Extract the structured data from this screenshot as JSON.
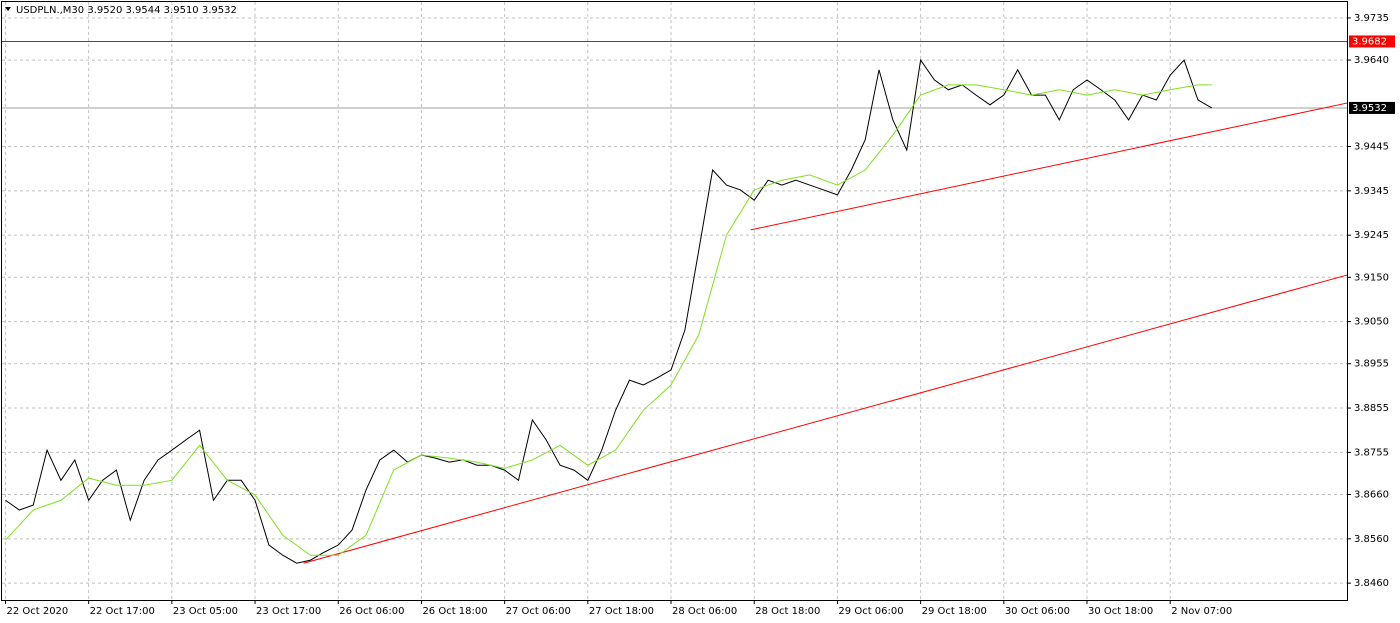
{
  "chart_data": {
    "type": "line",
    "header": "USDPLN.,M30  3.9520 3.9544 3.9510 3.9532",
    "xlim": [
      -1,
      387
    ],
    "ylim": [
      3.8422,
      3.9771
    ],
    "grid": true,
    "xticks": [
      {
        "value": 0,
        "label": "22 Oct 2020"
      },
      {
        "value": 24,
        "label": "22 Oct 17:00"
      },
      {
        "value": 48,
        "label": "23 Oct 05:00"
      },
      {
        "value": 72,
        "label": "23 Oct 17:00"
      },
      {
        "value": 96,
        "label": "26 Oct 06:00"
      },
      {
        "value": 120,
        "label": "26 Oct 18:00"
      },
      {
        "value": 144,
        "label": "27 Oct 06:00"
      },
      {
        "value": 168,
        "label": "27 Oct 18:00"
      },
      {
        "value": 192,
        "label": "28 Oct 06:00"
      },
      {
        "value": 216,
        "label": "28 Oct 18:00"
      },
      {
        "value": 240,
        "label": "29 Oct 06:00"
      },
      {
        "value": 264,
        "label": "29 Oct 18:00"
      },
      {
        "value": 288,
        "label": "30 Oct 06:00"
      },
      {
        "value": 312,
        "label": "30 Oct 18:00"
      },
      {
        "value": 336,
        "label": "2 Nov 07:00"
      }
    ],
    "yticks": [
      3.9735,
      {
        "value": 3.964,
        "label": "3.9640"
      },
      3.9445,
      3.9345,
      3.9245,
      {
        "value": 3.915,
        "label": "3.9150"
      },
      {
        "value": 3.905,
        "label": "3.9050"
      },
      3.8955,
      3.8855,
      3.8755,
      {
        "value": 3.866,
        "label": "3.8660"
      },
      {
        "value": 3.856,
        "label": "3.8560"
      },
      {
        "value": 3.846,
        "label": "3.8460"
      }
    ],
    "series": [
      {
        "color": "#000000",
        "x": [
          0,
          4,
          8,
          12,
          16,
          20,
          24,
          28,
          32,
          36,
          40,
          44,
          48,
          52,
          56,
          60,
          64,
          68,
          72,
          76,
          80,
          84,
          88,
          92,
          96,
          100,
          104,
          108,
          112,
          116,
          120,
          124,
          128,
          132,
          136,
          140,
          144,
          148,
          152,
          156,
          160,
          164,
          168,
          172,
          176,
          180,
          184,
          188,
          192,
          196,
          200,
          204,
          208,
          212,
          216,
          220,
          224,
          228,
          232,
          236,
          240,
          244,
          248,
          252,
          256,
          260,
          264,
          268,
          272,
          276,
          280,
          284,
          288,
          292,
          296,
          300,
          304,
          308,
          312,
          316,
          320,
          324,
          328,
          332,
          336,
          340,
          344,
          348
        ],
        "values": [
          3.8647,
          3.8625,
          3.8636,
          3.876,
          3.8692,
          3.8738,
          3.8647,
          3.8692,
          3.8715,
          3.8602,
          3.8692,
          3.8738,
          3.876,
          3.8783,
          3.8805,
          3.8647,
          3.8692,
          3.8692,
          3.8647,
          3.8546,
          3.8523,
          3.8505,
          3.8512,
          3.853,
          3.8546,
          3.858,
          3.867,
          3.8738,
          3.876,
          3.8733,
          3.8749,
          3.8742,
          3.8733,
          3.8738,
          3.8726,
          3.8726,
          3.8715,
          3.8692,
          3.8828,
          3.8783,
          3.8726,
          3.8715,
          3.8692,
          3.876,
          3.885,
          3.8918,
          3.8907,
          3.8923,
          3.8941,
          3.9031,
          3.9211,
          3.9392,
          3.9358,
          3.9347,
          3.9324,
          3.9369,
          3.9358,
          3.9369,
          3.9358,
          3.9347,
          3.9336,
          3.9392,
          3.946,
          3.9618,
          3.9505,
          3.9437,
          3.964,
          3.9595,
          3.9573,
          3.9584,
          3.9561,
          3.9539,
          3.9561,
          3.9618,
          3.9561,
          3.9561,
          3.9505,
          3.9573,
          3.9595,
          3.9573,
          3.955,
          3.9505,
          3.9561,
          3.955,
          3.9606,
          3.964,
          3.955,
          3.9532
        ]
      },
      {
        "color": "#7fe01f",
        "x": [
          0,
          8,
          16,
          24,
          32,
          40,
          48,
          56,
          64,
          72,
          80,
          88,
          96,
          104,
          112,
          120,
          128,
          136,
          144,
          152,
          160,
          168,
          176,
          184,
          192,
          200,
          208,
          216,
          224,
          232,
          240,
          248,
          256,
          264,
          272,
          280,
          288,
          296,
          304,
          312,
          320,
          328,
          336,
          344,
          348
        ],
        "values": [
          3.8557,
          3.8625,
          3.8647,
          3.8697,
          3.8681,
          3.8681,
          3.8692,
          3.8771,
          3.8692,
          3.8659,
          3.8568,
          3.8523,
          3.8523,
          3.8568,
          3.8715,
          3.8749,
          3.8742,
          3.8733,
          3.8719,
          3.8738,
          3.8771,
          3.8726,
          3.876,
          3.885,
          3.8907,
          3.902,
          3.9245,
          3.9347,
          3.9369,
          3.9381,
          3.9358,
          3.9392,
          3.9471,
          3.9561,
          3.9584,
          3.9584,
          3.9573,
          3.9561,
          3.9573,
          3.9561,
          3.9573,
          3.9561,
          3.9573,
          3.9584,
          3.9584
        ]
      }
    ],
    "trendlines": [
      {
        "color": "#ff0000",
        "x": [
          86,
          387
        ],
        "values": [
          3.8505,
          3.9155
        ]
      },
      {
        "color": "#ff0000",
        "x": [
          215,
          387
        ],
        "values": [
          3.9257,
          3.9543
        ]
      }
    ],
    "hline": {
      "value": 3.9682,
      "color": "#ff0000"
    },
    "bid_line": 3.9532
  }
}
